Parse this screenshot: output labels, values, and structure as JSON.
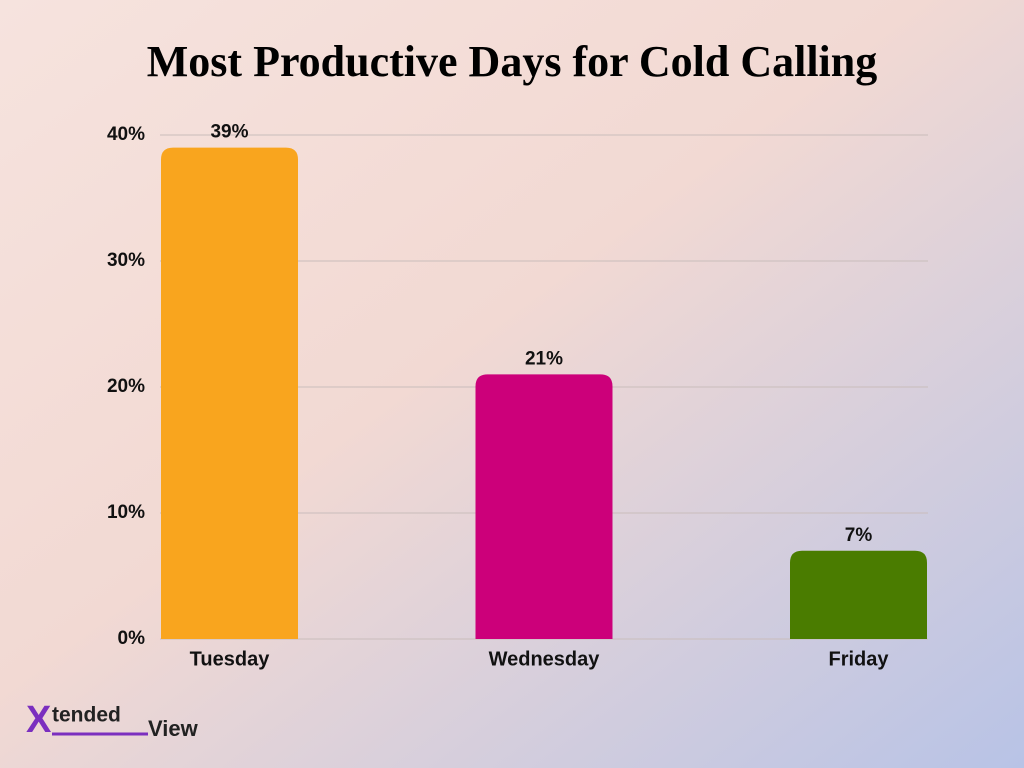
{
  "chart_data": {
    "type": "bar",
    "title": "Most Productive Days for Cold Calling",
    "categories": [
      "Tuesday",
      "Wednesday",
      "Friday"
    ],
    "values": [
      39,
      21,
      7
    ],
    "value_labels": [
      "39%",
      "21%",
      "7%"
    ],
    "colors": [
      "#f9a51e",
      "#cc007a",
      "#4a7c00"
    ],
    "ylim": [
      0,
      40
    ],
    "yticks": [
      {
        "value": 0,
        "label": "0%"
      },
      {
        "value": 10,
        "label": "10%"
      },
      {
        "value": 20,
        "label": "20%"
      },
      {
        "value": 30,
        "label": "30%"
      },
      {
        "value": 40,
        "label": "40%"
      }
    ],
    "grid": true
  },
  "brand": {
    "mark": "X",
    "first": "tended",
    "second": "View"
  }
}
